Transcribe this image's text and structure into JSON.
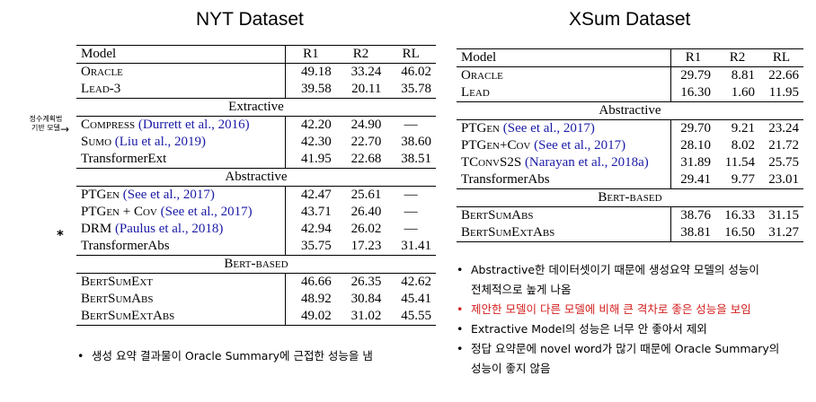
{
  "nyt": {
    "title": "NYT Dataset",
    "headers": [
      "Model",
      "R1",
      "R2",
      "RL"
    ],
    "rows_oracle": [
      {
        "model": "Oracle",
        "r1": "49.18",
        "r2": "33.24",
        "rl": "46.02"
      },
      {
        "model": "Lead-3",
        "r1": "39.58",
        "r2": "20.11",
        "rl": "35.78"
      }
    ],
    "extractive_label": "Extractive",
    "rows_extractive": [
      {
        "model": "Compress",
        "cite": "(Durrett et al., 2016)",
        "r1": "42.20",
        "r2": "24.90",
        "rl": "—"
      },
      {
        "model": "Sumo",
        "cite": "(Liu et al., 2019)",
        "r1": "42.30",
        "r2": "22.70",
        "rl": "38.60"
      },
      {
        "model": "TransformerExt",
        "cite": "",
        "r1": "41.95",
        "r2": "22.68",
        "rl": "38.51"
      }
    ],
    "abstractive_label": "Abstractive",
    "rows_abstractive": [
      {
        "model": "PTGen",
        "cite": "(See et al., 2017)",
        "r1": "42.47",
        "r2": "25.61",
        "rl": "—"
      },
      {
        "model": "PTGen + Cov",
        "cite": "(See et al., 2017)",
        "r1": "43.71",
        "r2": "26.40",
        "rl": "—"
      },
      {
        "model": "DRM",
        "cite": "(Paulus et al., 2018)",
        "r1": "42.94",
        "r2": "26.02",
        "rl": "—"
      },
      {
        "model": "TransformerAbs",
        "cite": "",
        "r1": "35.75",
        "r2": "17.23",
        "rl": "31.41"
      }
    ],
    "bert_label": "Bert-based",
    "rows_bert": [
      {
        "model": "BertSumExt",
        "r1": "46.66",
        "r2": "26.35",
        "rl": "42.62"
      },
      {
        "model": "BertSumAbs",
        "r1": "48.92",
        "r2": "30.84",
        "rl": "45.41"
      },
      {
        "model": "BertSumExtAbs",
        "r1": "49.02",
        "r2": "31.02",
        "rl": "45.55"
      }
    ],
    "side_note": "정수계획법\n기반 모델",
    "star": "*",
    "bullet": "생성 요약 결과물이 Oracle Summary에 근접한 성능을 냄"
  },
  "xsum": {
    "title": "XSum Dataset",
    "headers": [
      "Model",
      "R1",
      "R2",
      "RL"
    ],
    "rows_oracle": [
      {
        "model": "Oracle",
        "r1": "29.79",
        "r2": "8.81",
        "rl": "22.66"
      },
      {
        "model": "Lead",
        "r1": "16.30",
        "r2": "1.60",
        "rl": "11.95"
      }
    ],
    "abstractive_label": "Abstractive",
    "rows_abstractive": [
      {
        "model": "PTGen",
        "cite": "(See et al., 2017)",
        "r1": "29.70",
        "r2": "9.21",
        "rl": "23.24"
      },
      {
        "model": "PTGen+Cov",
        "cite": "(See et al., 2017)",
        "r1": "28.10",
        "r2": "8.02",
        "rl": "21.72"
      },
      {
        "model": "TConvS2S",
        "cite": "(Narayan et al., 2018a)",
        "r1": "31.89",
        "r2": "11.54",
        "rl": "25.75"
      },
      {
        "model": "TransformerAbs",
        "cite": "",
        "r1": "29.41",
        "r2": "9.77",
        "rl": "23.01"
      }
    ],
    "bert_label": "Bert-based",
    "rows_bert": [
      {
        "model": "BertSumAbs",
        "r1": "38.76",
        "r2": "16.33",
        "rl": "31.15"
      },
      {
        "model": "BertSumExtAbs",
        "r1": "38.81",
        "r2": "16.50",
        "rl": "31.27"
      }
    ],
    "bullets": [
      {
        "line1": "Abstractive한 데이터셋이기 때문에 생성요약 모델의 성능이",
        "line2": "전체적으로 높게 나옴",
        "color": "#000000"
      },
      {
        "line1": "제안한 모델이 다른 모델에 비해 큰 격차로 좋은 성능을 보임",
        "line2": "",
        "color": "#d42020"
      },
      {
        "line1": "Extractive Model의 성능은 너무 안 좋아서 제외",
        "line2": "",
        "color": "#000000"
      },
      {
        "line1": "정답 요약문에 novel word가 많기 때문에 Oracle Summary의",
        "line2": "성능이 좋지 않음",
        "color": "#000000"
      }
    ]
  }
}
